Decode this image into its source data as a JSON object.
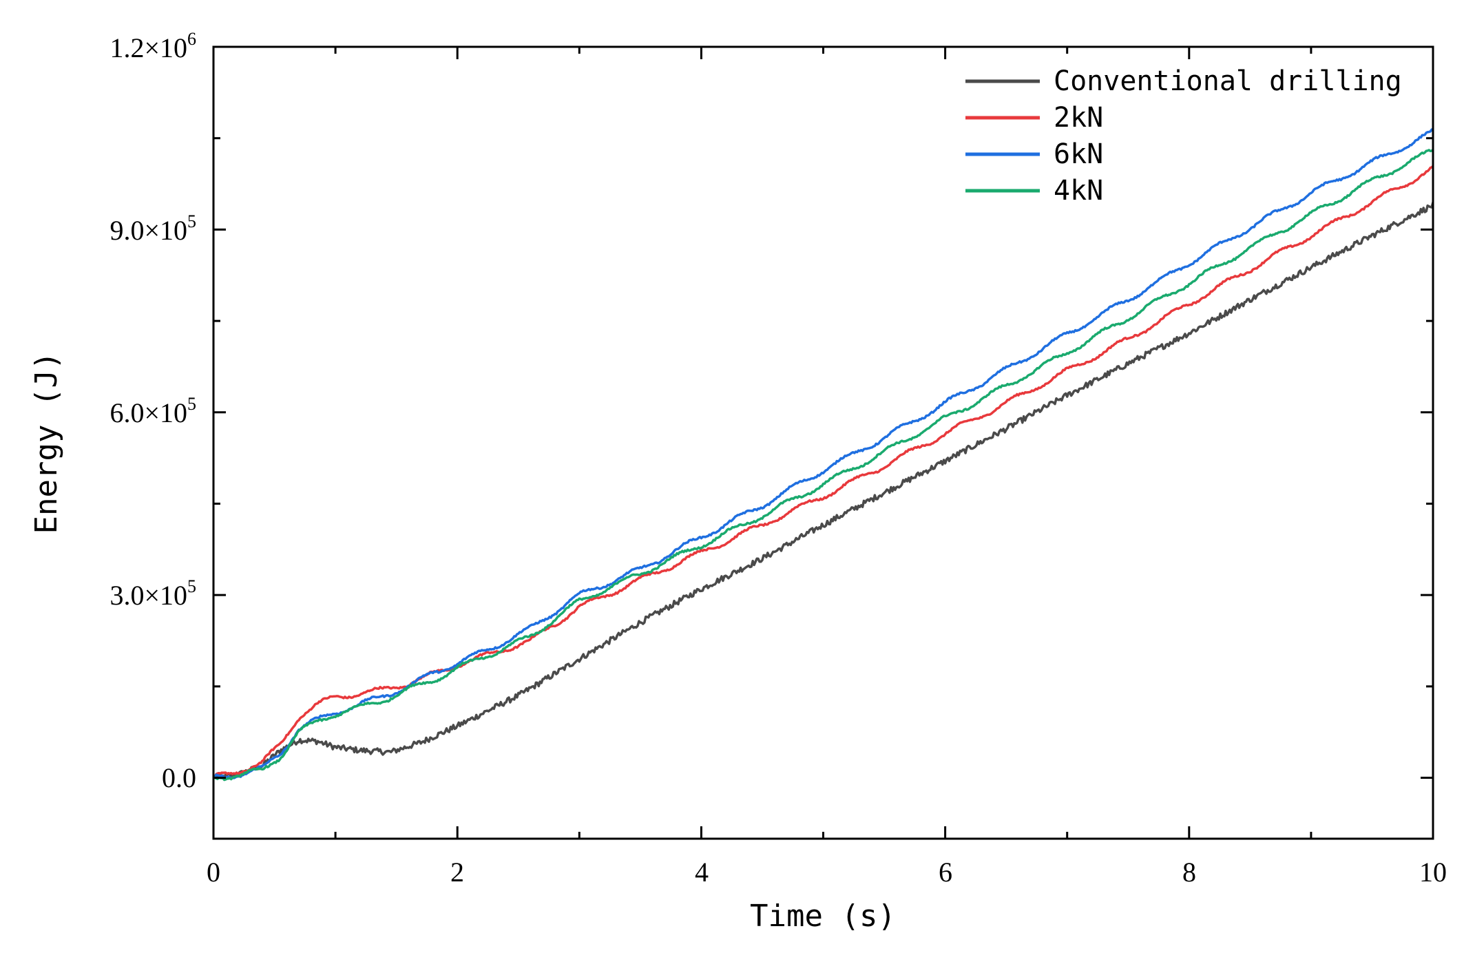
{
  "chart_data": {
    "type": "line",
    "title": "",
    "xlabel": "Time (s)",
    "ylabel": "Energy (J)",
    "xlim": [
      0,
      10
    ],
    "ylim": [
      -100000,
      1200000
    ],
    "x_ticks": [
      0,
      2,
      4,
      6,
      8,
      10
    ],
    "x_tick_labels": [
      "0",
      "2",
      "4",
      "6",
      "8",
      "10"
    ],
    "x_minor_ticks": [
      1,
      3,
      5,
      7,
      9
    ],
    "y_ticks": [
      0,
      300000,
      600000,
      900000,
      1200000
    ],
    "y_tick_labels": [
      {
        "mantissa": "0.0",
        "exponent": ""
      },
      {
        "mantissa": "3.0×10",
        "exponent": "5"
      },
      {
        "mantissa": "6.0×10",
        "exponent": "5"
      },
      {
        "mantissa": "9.0×10",
        "exponent": "5"
      },
      {
        "mantissa": "1.2×10",
        "exponent": "6"
      }
    ],
    "y_minor_ticks": [
      150000,
      450000,
      750000,
      1050000
    ],
    "grid": false,
    "legend_position": "top-right",
    "series": [
      {
        "name": "Conventional drilling",
        "color": "#4a4a4a",
        "noise": 6000,
        "x": [
          0,
          0.2,
          0.4,
          0.55,
          0.7,
          0.85,
          1.0,
          1.2,
          1.45,
          1.7,
          2.0,
          2.5,
          3.0,
          3.5,
          4.0,
          4.5,
          5.0,
          5.5,
          6.0,
          6.5,
          7.0,
          7.5,
          8.0,
          8.5,
          9.0,
          9.5,
          10.0
        ],
        "values": [
          0,
          5000,
          20000,
          45000,
          62000,
          60000,
          50000,
          45000,
          42000,
          58000,
          85000,
          135000,
          195000,
          255000,
          310000,
          360000,
          415000,
          468000,
          520000,
          573000,
          628000,
          680000,
          730000,
          785000,
          838000,
          890000,
          940000
        ]
      },
      {
        "name": "2kN",
        "color": "#e8393c",
        "noise": 3500,
        "x": [
          0,
          0.2,
          0.4,
          0.55,
          0.7,
          0.85,
          1.0,
          1.2,
          1.4,
          1.6,
          1.8,
          2.0,
          2.3,
          2.6,
          3.0,
          3.5,
          4.0,
          4.5,
          5.0,
          5.5,
          6.0,
          6.5,
          7.0,
          7.5,
          8.0,
          8.5,
          9.0,
          9.5,
          10.0
        ],
        "values": [
          0,
          10000,
          25000,
          55000,
          100000,
          120000,
          133000,
          138000,
          145000,
          155000,
          170000,
          185000,
          205000,
          225000,
          280000,
          325000,
          370000,
          415000,
          462000,
          512000,
          565000,
          615000,
          668000,
          720000,
          778000,
          835000,
          890000,
          945000,
          1000000
        ]
      },
      {
        "name": "6kN",
        "color": "#1f6fe0",
        "noise": 3500,
        "x": [
          0,
          0.2,
          0.4,
          0.55,
          0.7,
          0.85,
          1.0,
          1.2,
          1.4,
          1.6,
          1.8,
          2.0,
          2.3,
          2.6,
          3.0,
          3.5,
          4.0,
          4.5,
          5.0,
          5.5,
          6.0,
          6.5,
          7.0,
          7.5,
          8.0,
          8.5,
          9.0,
          9.5,
          10.0
        ],
        "values": [
          0,
          5000,
          15000,
          40000,
          80000,
          95000,
          108000,
          120000,
          135000,
          150000,
          172000,
          188000,
          215000,
          245000,
          300000,
          342000,
          395000,
          447000,
          505000,
          558000,
          615000,
          670000,
          728000,
          785000,
          845000,
          903000,
          960000,
          1010000,
          1060000
        ]
      },
      {
        "name": "4kN",
        "color": "#1aaa6e",
        "noise": 3500,
        "x": [
          0,
          0.2,
          0.4,
          0.55,
          0.7,
          0.85,
          1.0,
          1.2,
          1.4,
          1.6,
          1.8,
          2.0,
          2.3,
          2.6,
          3.0,
          3.5,
          4.0,
          4.5,
          5.0,
          5.5,
          6.0,
          6.5,
          7.0,
          7.5,
          8.0,
          8.5,
          9.0,
          9.5,
          10.0
        ],
        "values": [
          0,
          4000,
          12000,
          35000,
          75000,
          92000,
          105000,
          115000,
          128000,
          145000,
          160000,
          180000,
          205000,
          232000,
          290000,
          335000,
          382000,
          430000,
          482000,
          535000,
          590000,
          643000,
          698000,
          755000,
          812000,
          870000,
          925000,
          980000,
          1030000
        ]
      }
    ]
  }
}
